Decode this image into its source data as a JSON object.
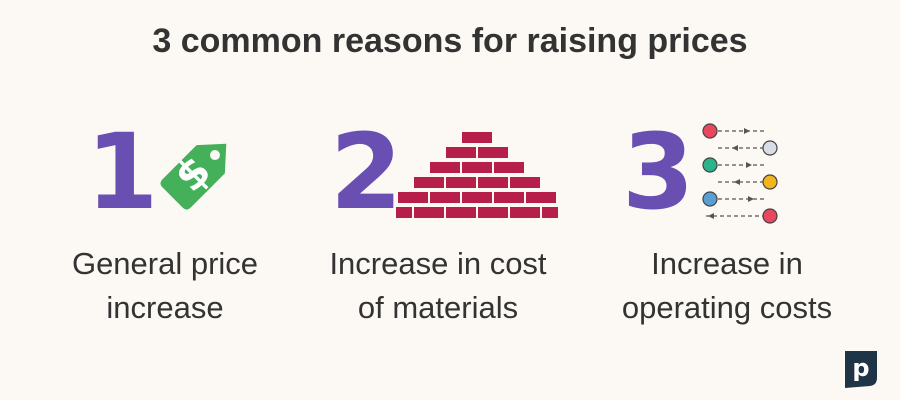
{
  "title": "3 common reasons for raising prices",
  "colors": {
    "number": "#6a4fb3",
    "text": "#333333",
    "tag": "#45b05a",
    "brick": "#b51f4a",
    "background": "#fcf9f4",
    "logo": "#1f3547"
  },
  "reasons": [
    {
      "number": "1",
      "line1": "General price",
      "line2": "increase",
      "icon": "price-tag-dollar-icon"
    },
    {
      "number": "2",
      "line1": "Increase in cost",
      "line2": "of materials",
      "icon": "brick-pyramid-icon"
    },
    {
      "number": "3",
      "line1": "Increase in",
      "line2": "operating costs",
      "icon": "process-flow-icon"
    }
  ],
  "logo": {
    "letter": "p",
    "icon": "brand-logo-icon"
  }
}
